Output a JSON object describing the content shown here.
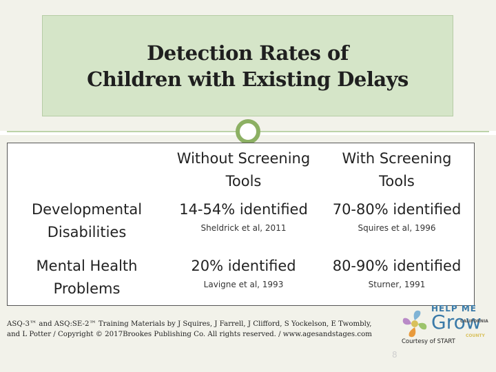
{
  "title": {
    "line1": "Detection Rates of",
    "line2": "Children with Existing Delays"
  },
  "table": {
    "header_without": "Without Screening Tools",
    "header_with": "With Screening Tools",
    "rows": [
      {
        "label": "Developmental Disabilities",
        "without_value": "14-54% identified",
        "without_citation": "Sheldrick et al, 2011",
        "with_value": "70-80% identified",
        "with_citation": "Squires et al, 1996"
      },
      {
        "label": "Mental Health Problems",
        "without_value": "20% identified",
        "without_citation": "Lavigne et al, 1993",
        "with_value": "80-90% identified",
        "with_citation": "Sturner, 1991"
      }
    ]
  },
  "footer": {
    "line1": "ASQ-3™ and ASQ:SE-2™ Training Materials by J Squires, J Farrell, J Clifford, S Yockelson, E Twombly,",
    "line2": "and L Potter / Copyright © 2017Brookes Publishing Co. All rights reserved. / www.agesandstages.com"
  },
  "logo": {
    "help_me": "HELP ME",
    "grow": "Grow",
    "california": "CALIFORNIA",
    "county": "COUNTY",
    "courtesy": "Courtesy of START"
  },
  "page_number": "8",
  "colors": {
    "title_box": "#d5e5c8",
    "accent_green": "#8cb063",
    "background_band": "#f2f2ea",
    "logo_blue": "#3a7aa8"
  }
}
